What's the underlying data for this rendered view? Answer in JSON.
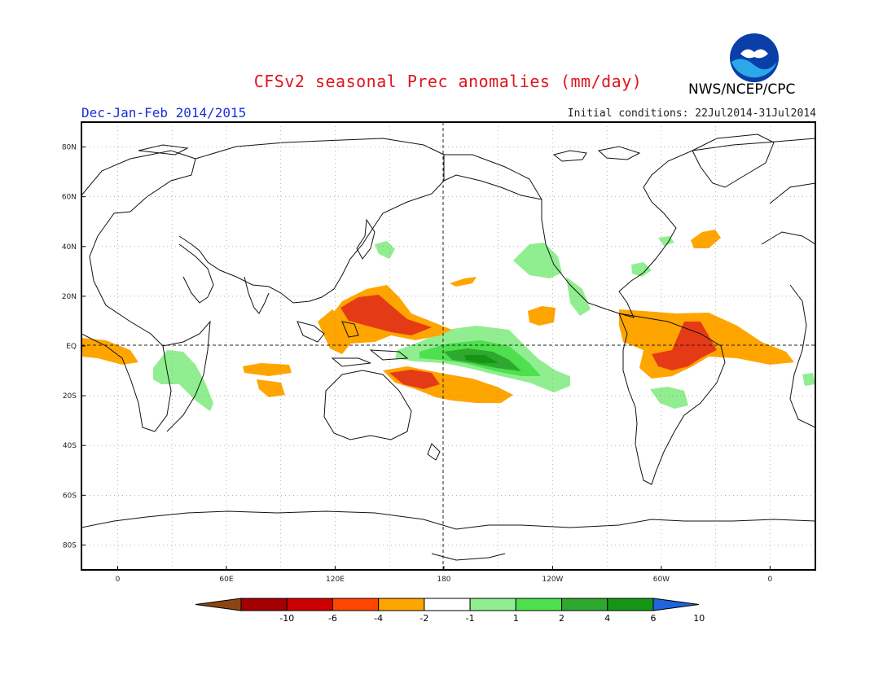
{
  "header": {
    "title": "CFSv2 seasonal Prec anomalies (mm/day)",
    "agency": "NWS/NCEP/CPC",
    "season": "Dec-Jan-Feb 2014/2015",
    "initial_conditions": "Initial conditions: 22Jul2014-31Jul2014",
    "logo_text": "NOAA"
  },
  "map": {
    "lat_labels": [
      "80N",
      "60N",
      "40N",
      "20N",
      "EQ",
      "20S",
      "40S",
      "60S",
      "80S"
    ],
    "lat_values": [
      80,
      60,
      40,
      20,
      0,
      -20,
      -40,
      -60,
      -80
    ],
    "lon_labels": [
      "0",
      "60E",
      "120E",
      "180",
      "120W",
      "60W",
      "0"
    ],
    "lon_values": [
      0,
      60,
      120,
      180,
      240,
      300,
      360
    ],
    "lon_range": [
      -20,
      385
    ],
    "lat_range": [
      -90,
      90
    ],
    "reference_lines": [
      "equator",
      "dateline"
    ]
  },
  "colorbar": {
    "labels": [
      "-10",
      "-6",
      "-4",
      "-2",
      "-1",
      "1",
      "2",
      "4",
      "6",
      "10"
    ],
    "colors": [
      "#8b4513",
      "#a50000",
      "#cc0000",
      "#ff4500",
      "#ffa500",
      "#ffffff",
      "#90ee90",
      "#4ee04e",
      "#2ea82e",
      "#149614",
      "#1e64dc"
    ]
  },
  "anomaly_regions": [
    {
      "name": "West Pacific dry core",
      "level": "-4 to -6",
      "color": "#e53a16"
    },
    {
      "name": "SPCZ dry",
      "level": "-4",
      "color": "#e53a16"
    },
    {
      "name": "Central Pacific wet",
      "level": "+4 to +6",
      "color": "#2ea82e"
    },
    {
      "name": "NE Brazil dry",
      "level": "-4",
      "color": "#e53a16"
    },
    {
      "name": "Atlantic ITCZ dry",
      "level": "-2",
      "color": "#ffa500"
    },
    {
      "name": "Gulf of Guinea dry",
      "level": "-2",
      "color": "#ffa500"
    },
    {
      "name": "Indian Ocean dry",
      "level": "-2",
      "color": "#ffa500"
    },
    {
      "name": "SE Africa wet",
      "level": "+2",
      "color": "#90ee90"
    },
    {
      "name": "East Pacific wet",
      "level": "+2",
      "color": "#90ee90"
    },
    {
      "name": "NE Pacific wet",
      "level": "+2",
      "color": "#90ee90"
    }
  ]
}
